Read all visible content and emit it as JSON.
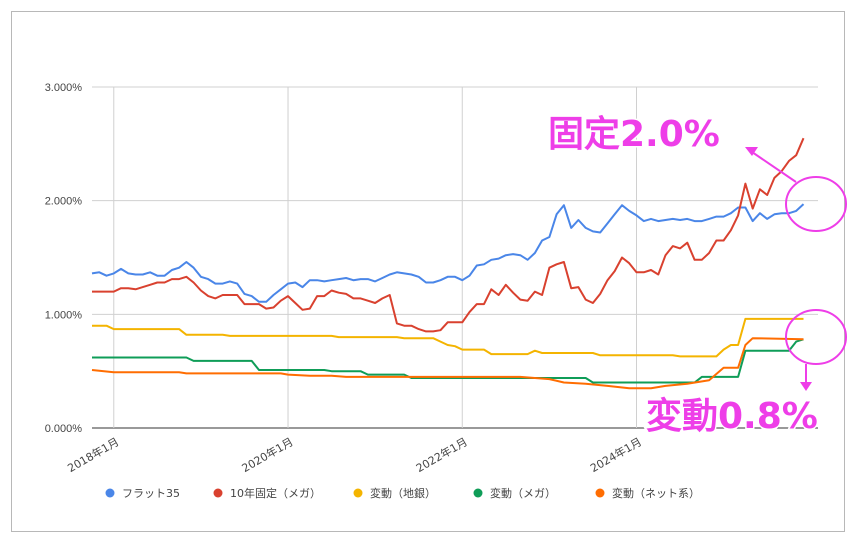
{
  "chart_data": {
    "type": "line",
    "title": "",
    "xlabel": "",
    "ylabel": "",
    "ylim": [
      0,
      3
    ],
    "y_ticks": [
      "0.000%",
      "1.000%",
      "2.000%",
      "3.000%"
    ],
    "y_tick_values": [
      0,
      1,
      2,
      3
    ],
    "x_ticks": [
      "2018年1月",
      "2020年1月",
      "2022年1月",
      "2024年1月"
    ],
    "x_tick_values": [
      "2018-01",
      "2020-01",
      "2022-01",
      "2024-01"
    ],
    "x_range": [
      "2017-10",
      "2026-02"
    ],
    "grid": true,
    "legend_position": "bottom",
    "series": [
      {
        "name": "フラット35",
        "color": "#4a86e8",
        "points": [
          [
            "2017-10",
            1.36
          ],
          [
            "2017-11",
            1.37
          ],
          [
            "2017-12",
            1.34
          ],
          [
            "2018-01",
            1.36
          ],
          [
            "2018-02",
            1.4
          ],
          [
            "2018-03",
            1.36
          ],
          [
            "2018-04",
            1.35
          ],
          [
            "2018-05",
            1.35
          ],
          [
            "2018-06",
            1.37
          ],
          [
            "2018-07",
            1.34
          ],
          [
            "2018-08",
            1.34
          ],
          [
            "2018-09",
            1.39
          ],
          [
            "2018-10",
            1.41
          ],
          [
            "2018-11",
            1.46
          ],
          [
            "2018-12",
            1.41
          ],
          [
            "2019-01",
            1.33
          ],
          [
            "2019-02",
            1.31
          ],
          [
            "2019-03",
            1.27
          ],
          [
            "2019-04",
            1.27
          ],
          [
            "2019-05",
            1.29
          ],
          [
            "2019-06",
            1.27
          ],
          [
            "2019-07",
            1.18
          ],
          [
            "2019-08",
            1.16
          ],
          [
            "2019-09",
            1.11
          ],
          [
            "2019-10",
            1.11
          ],
          [
            "2019-11",
            1.17
          ],
          [
            "2019-12",
            1.22
          ],
          [
            "2020-01",
            1.27
          ],
          [
            "2020-02",
            1.28
          ],
          [
            "2020-03",
            1.24
          ],
          [
            "2020-04",
            1.3
          ],
          [
            "2020-05",
            1.3
          ],
          [
            "2020-06",
            1.29
          ],
          [
            "2020-07",
            1.3
          ],
          [
            "2020-08",
            1.31
          ],
          [
            "2020-09",
            1.32
          ],
          [
            "2020-10",
            1.3
          ],
          [
            "2020-11",
            1.31
          ],
          [
            "2020-12",
            1.31
          ],
          [
            "2021-01",
            1.29
          ],
          [
            "2021-02",
            1.32
          ],
          [
            "2021-03",
            1.35
          ],
          [
            "2021-04",
            1.37
          ],
          [
            "2021-05",
            1.36
          ],
          [
            "2021-06",
            1.35
          ],
          [
            "2021-07",
            1.33
          ],
          [
            "2021-08",
            1.28
          ],
          [
            "2021-09",
            1.28
          ],
          [
            "2021-10",
            1.3
          ],
          [
            "2021-11",
            1.33
          ],
          [
            "2021-12",
            1.33
          ],
          [
            "2022-01",
            1.3
          ],
          [
            "2022-02",
            1.34
          ],
          [
            "2022-03",
            1.43
          ],
          [
            "2022-04",
            1.44
          ],
          [
            "2022-05",
            1.48
          ],
          [
            "2022-06",
            1.49
          ],
          [
            "2022-07",
            1.52
          ],
          [
            "2022-08",
            1.53
          ],
          [
            "2022-09",
            1.52
          ],
          [
            "2022-10",
            1.48
          ],
          [
            "2022-11",
            1.54
          ],
          [
            "2022-12",
            1.65
          ],
          [
            "2023-01",
            1.68
          ],
          [
            "2023-02",
            1.88
          ],
          [
            "2023-03",
            1.96
          ],
          [
            "2023-04",
            1.76
          ],
          [
            "2023-05",
            1.83
          ],
          [
            "2023-06",
            1.76
          ],
          [
            "2023-07",
            1.73
          ],
          [
            "2023-08",
            1.72
          ],
          [
            "2023-09",
            1.8
          ],
          [
            "2023-10",
            1.88
          ],
          [
            "2023-11",
            1.96
          ],
          [
            "2023-12",
            1.91
          ],
          [
            "2024-01",
            1.87
          ],
          [
            "2024-02",
            1.82
          ],
          [
            "2024-03",
            1.84
          ],
          [
            "2024-04",
            1.82
          ],
          [
            "2024-05",
            1.83
          ],
          [
            "2024-06",
            1.84
          ],
          [
            "2024-07",
            1.83
          ],
          [
            "2024-08",
            1.84
          ],
          [
            "2024-09",
            1.82
          ],
          [
            "2024-10",
            1.82
          ],
          [
            "2024-11",
            1.84
          ],
          [
            "2024-12",
            1.86
          ],
          [
            "2025-01",
            1.86
          ],
          [
            "2025-02",
            1.89
          ],
          [
            "2025-03",
            1.94
          ],
          [
            "2025-04",
            1.94
          ],
          [
            "2025-05",
            1.82
          ],
          [
            "2025-06",
            1.89
          ],
          [
            "2025-07",
            1.84
          ],
          [
            "2025-08",
            1.88
          ],
          [
            "2025-09",
            1.89
          ],
          [
            "2025-10",
            1.89
          ],
          [
            "2025-11",
            1.91
          ],
          [
            "2025-12",
            1.97
          ]
        ]
      },
      {
        "name": "10年固定（メガ）",
        "color": "#d9412f",
        "points": [
          [
            "2017-10",
            1.2
          ],
          [
            "2017-11",
            1.2
          ],
          [
            "2017-12",
            1.2
          ],
          [
            "2018-01",
            1.2
          ],
          [
            "2018-02",
            1.23
          ],
          [
            "2018-03",
            1.23
          ],
          [
            "2018-04",
            1.22
          ],
          [
            "2018-05",
            1.24
          ],
          [
            "2018-06",
            1.26
          ],
          [
            "2018-07",
            1.28
          ],
          [
            "2018-08",
            1.28
          ],
          [
            "2018-09",
            1.31
          ],
          [
            "2018-10",
            1.31
          ],
          [
            "2018-11",
            1.33
          ],
          [
            "2018-12",
            1.28
          ],
          [
            "2019-01",
            1.21
          ],
          [
            "2019-02",
            1.16
          ],
          [
            "2019-03",
            1.14
          ],
          [
            "2019-04",
            1.17
          ],
          [
            "2019-05",
            1.17
          ],
          [
            "2019-06",
            1.17
          ],
          [
            "2019-07",
            1.09
          ],
          [
            "2019-08",
            1.09
          ],
          [
            "2019-09",
            1.09
          ],
          [
            "2019-10",
            1.05
          ],
          [
            "2019-11",
            1.06
          ],
          [
            "2019-12",
            1.12
          ],
          [
            "2020-01",
            1.16
          ],
          [
            "2020-02",
            1.1
          ],
          [
            "2020-03",
            1.04
          ],
          [
            "2020-04",
            1.05
          ],
          [
            "2020-05",
            1.16
          ],
          [
            "2020-06",
            1.16
          ],
          [
            "2020-07",
            1.21
          ],
          [
            "2020-08",
            1.19
          ],
          [
            "2020-09",
            1.18
          ],
          [
            "2020-10",
            1.14
          ],
          [
            "2020-11",
            1.14
          ],
          [
            "2020-12",
            1.12
          ],
          [
            "2021-01",
            1.1
          ],
          [
            "2021-02",
            1.14
          ],
          [
            "2021-03",
            1.17
          ],
          [
            "2021-04",
            0.92
          ],
          [
            "2021-05",
            0.9
          ],
          [
            "2021-06",
            0.9
          ],
          [
            "2021-07",
            0.87
          ],
          [
            "2021-08",
            0.85
          ],
          [
            "2021-09",
            0.85
          ],
          [
            "2021-10",
            0.86
          ],
          [
            "2021-11",
            0.93
          ],
          [
            "2021-12",
            0.93
          ],
          [
            "2022-01",
            0.93
          ],
          [
            "2022-02",
            1.02
          ],
          [
            "2022-03",
            1.09
          ],
          [
            "2022-04",
            1.09
          ],
          [
            "2022-05",
            1.22
          ],
          [
            "2022-06",
            1.17
          ],
          [
            "2022-07",
            1.26
          ],
          [
            "2022-08",
            1.19
          ],
          [
            "2022-09",
            1.13
          ],
          [
            "2022-10",
            1.12
          ],
          [
            "2022-11",
            1.2
          ],
          [
            "2022-12",
            1.17
          ],
          [
            "2023-01",
            1.41
          ],
          [
            "2023-02",
            1.44
          ],
          [
            "2023-03",
            1.46
          ],
          [
            "2023-04",
            1.23
          ],
          [
            "2023-05",
            1.24
          ],
          [
            "2023-06",
            1.13
          ],
          [
            "2023-07",
            1.1
          ],
          [
            "2023-08",
            1.18
          ],
          [
            "2023-09",
            1.3
          ],
          [
            "2023-10",
            1.38
          ],
          [
            "2023-11",
            1.5
          ],
          [
            "2023-12",
            1.45
          ],
          [
            "2024-01",
            1.37
          ],
          [
            "2024-02",
            1.37
          ],
          [
            "2024-03",
            1.39
          ],
          [
            "2024-04",
            1.35
          ],
          [
            "2024-05",
            1.52
          ],
          [
            "2024-06",
            1.6
          ],
          [
            "2024-07",
            1.58
          ],
          [
            "2024-08",
            1.63
          ],
          [
            "2024-09",
            1.48
          ],
          [
            "2024-10",
            1.48
          ],
          [
            "2024-11",
            1.54
          ],
          [
            "2024-12",
            1.65
          ],
          [
            "2025-01",
            1.65
          ],
          [
            "2025-02",
            1.74
          ],
          [
            "2025-03",
            1.87
          ],
          [
            "2025-04",
            2.15
          ],
          [
            "2025-05",
            1.93
          ],
          [
            "2025-06",
            2.1
          ],
          [
            "2025-07",
            2.05
          ],
          [
            "2025-08",
            2.2
          ],
          [
            "2025-09",
            2.26
          ],
          [
            "2025-10",
            2.35
          ],
          [
            "2025-11",
            2.4
          ],
          [
            "2025-12",
            2.55
          ]
        ]
      },
      {
        "name": "変動（地銀）",
        "color": "#f4b400",
        "points": [
          [
            "2017-10",
            0.9
          ],
          [
            "2017-11",
            0.9
          ],
          [
            "2017-12",
            0.9
          ],
          [
            "2018-01",
            0.87
          ],
          [
            "2018-02",
            0.87
          ],
          [
            "2018-10",
            0.87
          ],
          [
            "2018-11",
            0.82
          ],
          [
            "2019-04",
            0.82
          ],
          [
            "2019-05",
            0.81
          ],
          [
            "2020-07",
            0.81
          ],
          [
            "2020-08",
            0.8
          ],
          [
            "2021-04",
            0.8
          ],
          [
            "2021-05",
            0.79
          ],
          [
            "2021-09",
            0.79
          ],
          [
            "2021-10",
            0.76
          ],
          [
            "2021-11",
            0.73
          ],
          [
            "2021-12",
            0.72
          ],
          [
            "2022-01",
            0.69
          ],
          [
            "2022-04",
            0.69
          ],
          [
            "2022-05",
            0.65
          ],
          [
            "2022-09",
            0.65
          ],
          [
            "2022-10",
            0.65
          ],
          [
            "2022-11",
            0.68
          ],
          [
            "2022-12",
            0.66
          ],
          [
            "2023-07",
            0.66
          ],
          [
            "2023-08",
            0.64
          ],
          [
            "2024-06",
            0.64
          ],
          [
            "2024-07",
            0.63
          ],
          [
            "2024-12",
            0.63
          ],
          [
            "2025-01",
            0.69
          ],
          [
            "2025-02",
            0.73
          ],
          [
            "2025-03",
            0.73
          ],
          [
            "2025-04",
            0.96
          ],
          [
            "2025-12",
            0.96
          ]
        ]
      },
      {
        "name": "変動（メガ）",
        "color": "#0f9d58",
        "points": [
          [
            "2017-10",
            0.62
          ],
          [
            "2018-11",
            0.62
          ],
          [
            "2018-12",
            0.59
          ],
          [
            "2019-08",
            0.59
          ],
          [
            "2019-09",
            0.51
          ],
          [
            "2020-06",
            0.51
          ],
          [
            "2020-07",
            0.5
          ],
          [
            "2020-11",
            0.5
          ],
          [
            "2020-12",
            0.47
          ],
          [
            "2021-05",
            0.47
          ],
          [
            "2021-06",
            0.44
          ],
          [
            "2023-06",
            0.44
          ],
          [
            "2023-07",
            0.4
          ],
          [
            "2024-09",
            0.4
          ],
          [
            "2024-10",
            0.45
          ],
          [
            "2025-03",
            0.45
          ],
          [
            "2025-04",
            0.68
          ],
          [
            "2025-10",
            0.68
          ],
          [
            "2025-11",
            0.76
          ],
          [
            "2025-12",
            0.78
          ]
        ]
      },
      {
        "name": "変動（ネット系）",
        "color": "#ff6d01",
        "points": [
          [
            "2017-10",
            0.51
          ],
          [
            "2018-01",
            0.49
          ],
          [
            "2018-10",
            0.49
          ],
          [
            "2018-11",
            0.48
          ],
          [
            "2019-12",
            0.48
          ],
          [
            "2020-01",
            0.47
          ],
          [
            "2020-04",
            0.46
          ],
          [
            "2020-07",
            0.46
          ],
          [
            "2020-09",
            0.45
          ],
          [
            "2021-05",
            0.45
          ],
          [
            "2022-09",
            0.45
          ],
          [
            "2023-01",
            0.43
          ],
          [
            "2023-03",
            0.4
          ],
          [
            "2023-06",
            0.39
          ],
          [
            "2023-09",
            0.37
          ],
          [
            "2023-12",
            0.35
          ],
          [
            "2024-03",
            0.35
          ],
          [
            "2024-05",
            0.37
          ],
          [
            "2024-08",
            0.39
          ],
          [
            "2024-11",
            0.42
          ],
          [
            "2025-01",
            0.53
          ],
          [
            "2025-03",
            0.53
          ],
          [
            "2025-04",
            0.73
          ],
          [
            "2025-05",
            0.79
          ],
          [
            "2025-12",
            0.78
          ]
        ]
      }
    ],
    "annotations": [
      {
        "text": "固定2.0%",
        "color": "#ee3ee8"
      },
      {
        "text": "変動0.8%",
        "color": "#ee3ee8"
      }
    ]
  }
}
